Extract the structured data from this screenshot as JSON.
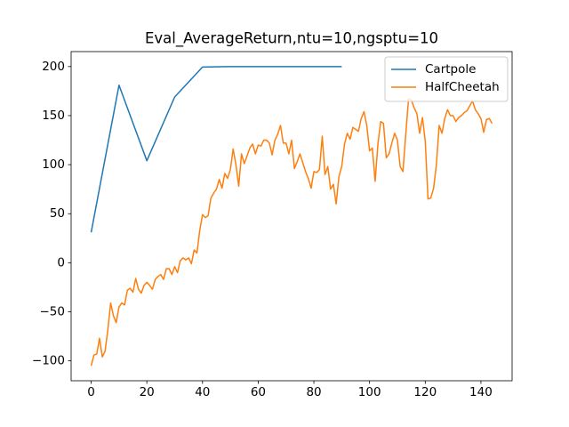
{
  "chart_data": {
    "type": "line",
    "title": "Eval_AverageReturn,ntu=10,ngsptu=10",
    "xlim": [
      -7.2,
      151.2
    ],
    "ylim": [
      -120.25,
      215.25
    ],
    "xticks": [
      0,
      20,
      40,
      60,
      80,
      100,
      120,
      140
    ],
    "yticks": [
      {
        "value": -100,
        "label": "−100"
      },
      {
        "value": -50,
        "label": "−50"
      },
      0,
      50,
      100,
      150,
      200
    ],
    "legend": "upper right",
    "series": [
      {
        "name": "Cartpole",
        "color": "#1f77b4",
        "x": [
          0,
          10,
          20,
          30,
          40,
          50,
          60,
          70,
          80,
          90
        ],
        "values": [
          31,
          181,
          104,
          169,
          199.5,
          200,
          200,
          200,
          200,
          200
        ]
      },
      {
        "name": "HalfCheetah",
        "color": "#ff7f0e",
        "x": [
          0,
          1,
          2,
          3,
          4,
          5,
          6,
          7,
          8,
          9,
          10,
          11,
          12,
          13,
          14,
          15,
          16,
          17,
          18,
          19,
          20,
          21,
          22,
          23,
          24,
          25,
          26,
          27,
          28,
          29,
          30,
          31,
          32,
          33,
          34,
          35,
          36,
          37,
          38,
          39,
          40,
          41,
          42,
          43,
          44,
          45,
          46,
          47,
          48,
          49,
          50,
          51,
          52,
          53,
          54,
          55,
          56,
          57,
          58,
          59,
          60,
          61,
          62,
          63,
          64,
          65,
          66,
          67,
          68,
          69,
          70,
          71,
          72,
          73,
          74,
          75,
          76,
          77,
          78,
          79,
          80,
          81,
          82,
          83,
          84,
          85,
          86,
          87,
          88,
          89,
          90,
          91,
          92,
          93,
          94,
          95,
          96,
          97,
          98,
          99,
          100,
          101,
          102,
          103,
          104,
          105,
          106,
          107,
          108,
          109,
          110,
          111,
          112,
          113,
          114,
          115,
          116,
          117,
          118,
          119,
          120,
          121,
          122,
          123,
          124,
          125,
          126,
          127,
          128,
          129,
          130,
          131,
          132,
          133,
          134,
          135,
          136,
          137,
          138,
          139,
          140,
          141,
          142,
          143,
          144
        ],
        "values": [
          -105,
          -94,
          -93,
          -77,
          -96,
          -90,
          -68,
          -41,
          -54,
          -61,
          -45,
          -41,
          -43,
          -28,
          -26,
          -30,
          -16,
          -27,
          -31,
          -23,
          -20,
          -23,
          -27,
          -17,
          -14,
          -12,
          -17,
          -6,
          -6,
          -12,
          -4,
          -10,
          2,
          5,
          3,
          5,
          -1,
          13,
          10,
          33,
          49,
          46,
          48,
          66,
          71,
          75,
          85,
          76,
          91,
          86,
          95,
          116,
          100,
          78,
          111,
          101,
          109,
          117,
          121,
          111,
          120,
          119,
          125,
          125,
          122,
          110,
          125,
          131,
          140,
          122,
          122,
          111,
          125,
          96,
          103,
          111,
          102,
          93,
          86,
          76,
          93,
          92,
          95,
          129,
          90,
          98,
          75,
          80,
          60,
          88,
          98,
          121,
          132,
          126,
          138,
          136,
          134,
          147,
          154,
          140,
          114,
          117,
          83,
          121,
          144,
          142,
          107,
          111,
          122,
          132,
          125,
          98,
          93,
          131,
          167,
          166,
          158,
          152,
          132,
          148,
          124,
          65,
          66,
          76,
          100,
          140,
          132,
          147,
          156,
          150,
          150,
          144,
          148,
          150,
          153,
          155,
          160,
          165,
          156,
          152,
          147,
          133,
          146,
          147,
          142
        ]
      }
    ]
  }
}
